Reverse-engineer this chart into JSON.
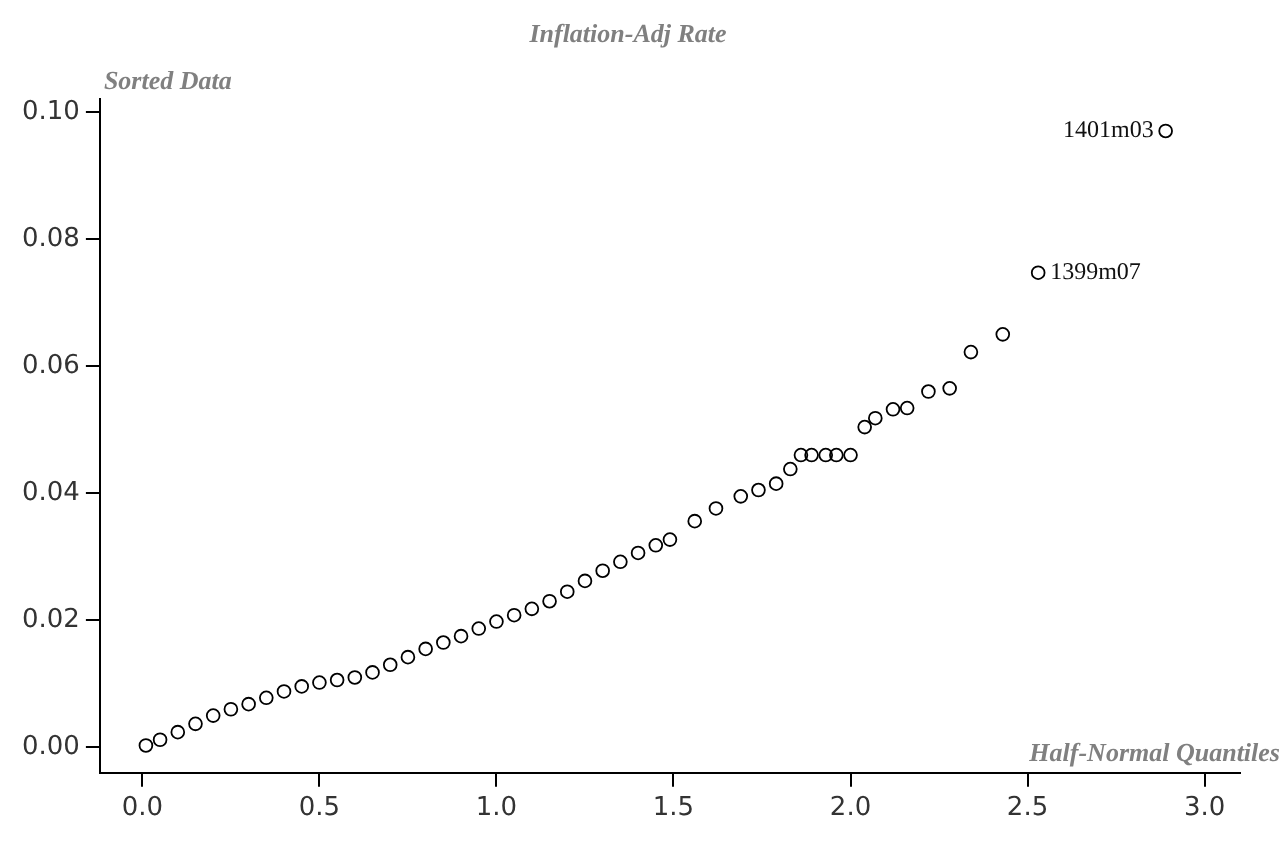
{
  "chart_data": {
    "type": "scatter",
    "title": "Inflation-Adj Rate",
    "xlabel": "Half-Normal Quantiles",
    "ylabel": "Sorted Data",
    "x": [
      0.01,
      0.05,
      0.1,
      0.15,
      0.2,
      0.25,
      0.3,
      0.35,
      0.4,
      0.45,
      0.5,
      0.55,
      0.6,
      0.65,
      0.7,
      0.75,
      0.8,
      0.85,
      0.9,
      0.95,
      1.0,
      1.05,
      1.1,
      1.15,
      1.2,
      1.25,
      1.3,
      1.35,
      1.4,
      1.45,
      1.49,
      1.56,
      1.62,
      1.69,
      1.74,
      1.79,
      1.83,
      1.86,
      1.89,
      1.93,
      1.96,
      2.0,
      2.04,
      2.07,
      2.12,
      2.16,
      2.22,
      2.28,
      2.34,
      2.43,
      2.53,
      2.89
    ],
    "series": [
      {
        "color": "#000000",
        "values": [
          0.0003,
          0.0012,
          0.0024,
          0.0037,
          0.005,
          0.006,
          0.0068,
          0.0078,
          0.0088,
          0.0096,
          0.0102,
          0.0106,
          0.011,
          0.0118,
          0.013,
          0.0142,
          0.0155,
          0.0165,
          0.0175,
          0.0187,
          0.0198,
          0.0208,
          0.0218,
          0.023,
          0.0245,
          0.0262,
          0.0278,
          0.0292,
          0.0306,
          0.0318,
          0.0327,
          0.0356,
          0.0376,
          0.0395,
          0.0405,
          0.0415,
          0.0438,
          0.046,
          0.046,
          0.046,
          0.046,
          0.046,
          0.0504,
          0.0518,
          0.0532,
          0.0534,
          0.056,
          0.0565,
          0.0622,
          0.065,
          0.0747,
          0.097
        ]
      }
    ],
    "annotations": [
      {
        "text": "1401m03",
        "x": 2.89,
        "y": 0.097
      },
      {
        "text": "1399m07",
        "x": 2.53,
        "y": 0.0747
      }
    ],
    "xlim": [
      -0.12,
      3.1
    ],
    "ylim": [
      -0.004,
      0.102
    ],
    "xticks": [
      {
        "value": 0,
        "label": "0.0"
      },
      0.5,
      {
        "value": 1,
        "label": "1.0"
      },
      1.5,
      {
        "value": 2,
        "label": "2.0"
      },
      2.5,
      {
        "value": 3,
        "label": "3.0"
      }
    ],
    "yticks": [
      {
        "value": 0,
        "label": "0.00"
      },
      0.02,
      0.04,
      0.06,
      0.08,
      {
        "value": 0.1,
        "label": "0.10"
      }
    ],
    "marker": "circle",
    "grid": false,
    "legend": false
  }
}
